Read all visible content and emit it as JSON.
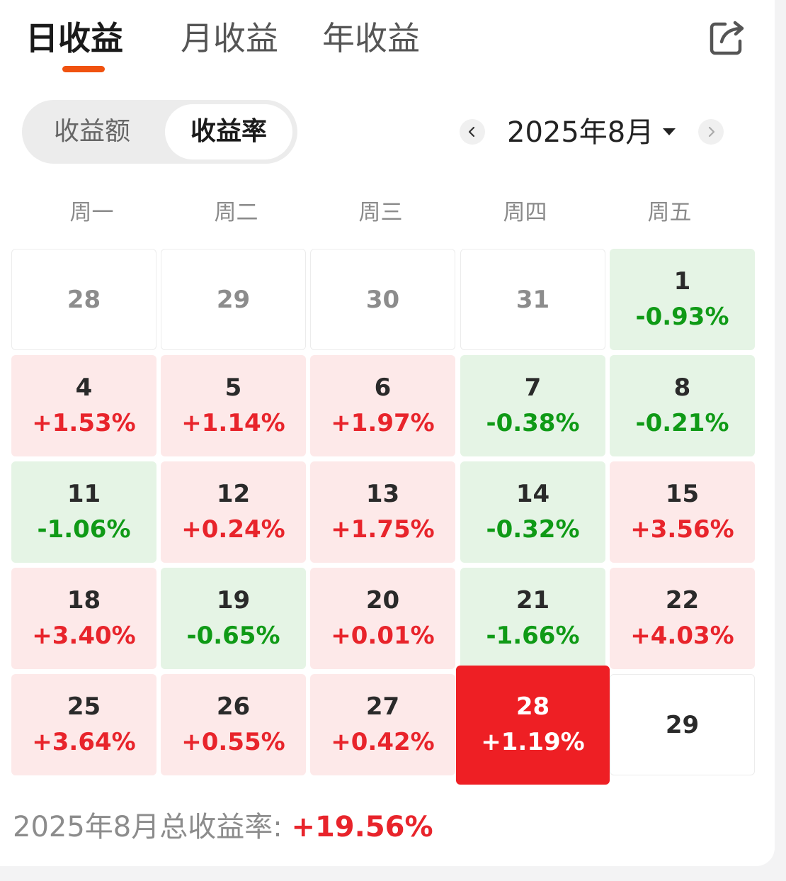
{
  "tabs": [
    {
      "label": "日收益",
      "active": true
    },
    {
      "label": "月收益",
      "active": false
    },
    {
      "label": "年收益",
      "active": false
    }
  ],
  "toggle": {
    "options": [
      "收益额",
      "收益率"
    ],
    "selected": "收益率"
  },
  "month_picker": {
    "label": "2025年8月"
  },
  "weekdays": [
    "周一",
    "周二",
    "周三",
    "周四",
    "周五"
  ],
  "calendar": [
    {
      "day": "28",
      "rate": "",
      "state": "prev"
    },
    {
      "day": "29",
      "rate": "",
      "state": "prev"
    },
    {
      "day": "30",
      "rate": "",
      "state": "prev"
    },
    {
      "day": "31",
      "rate": "",
      "state": "prev"
    },
    {
      "day": "1",
      "rate": "-0.93%",
      "state": "loss"
    },
    {
      "day": "4",
      "rate": "+1.53%",
      "state": "gain"
    },
    {
      "day": "5",
      "rate": "+1.14%",
      "state": "gain"
    },
    {
      "day": "6",
      "rate": "+1.97%",
      "state": "gain"
    },
    {
      "day": "7",
      "rate": "-0.38%",
      "state": "loss"
    },
    {
      "day": "8",
      "rate": "-0.21%",
      "state": "loss"
    },
    {
      "day": "11",
      "rate": "-1.06%",
      "state": "loss"
    },
    {
      "day": "12",
      "rate": "+0.24%",
      "state": "gain"
    },
    {
      "day": "13",
      "rate": "+1.75%",
      "state": "gain"
    },
    {
      "day": "14",
      "rate": "-0.32%",
      "state": "loss"
    },
    {
      "day": "15",
      "rate": "+3.56%",
      "state": "gain"
    },
    {
      "day": "18",
      "rate": "+3.40%",
      "state": "gain"
    },
    {
      "day": "19",
      "rate": "-0.65%",
      "state": "loss"
    },
    {
      "day": "20",
      "rate": "+0.01%",
      "state": "gain"
    },
    {
      "day": "21",
      "rate": "-1.66%",
      "state": "loss"
    },
    {
      "day": "22",
      "rate": "+4.03%",
      "state": "gain"
    },
    {
      "day": "25",
      "rate": "+3.64%",
      "state": "gain"
    },
    {
      "day": "26",
      "rate": "+0.55%",
      "state": "gain"
    },
    {
      "day": "27",
      "rate": "+0.42%",
      "state": "gain"
    },
    {
      "day": "28",
      "rate": "+1.19%",
      "state": "selected"
    },
    {
      "day": "29",
      "rate": "",
      "state": "empty"
    }
  ],
  "summary": {
    "label": "2025年8月总收益率: ",
    "value": "+19.56%"
  },
  "colors": {
    "accent": "#f0520f",
    "gain_text": "#e8242b",
    "gain_bg": "#fde9e9",
    "loss_text": "#0f9a16",
    "loss_bg": "#e5f4e5",
    "selected_bg": "#ee1f24"
  },
  "icons": {
    "share": "share-icon",
    "prev": "chevron-left-icon",
    "next": "chevron-right-icon",
    "caret": "caret-down-icon"
  }
}
